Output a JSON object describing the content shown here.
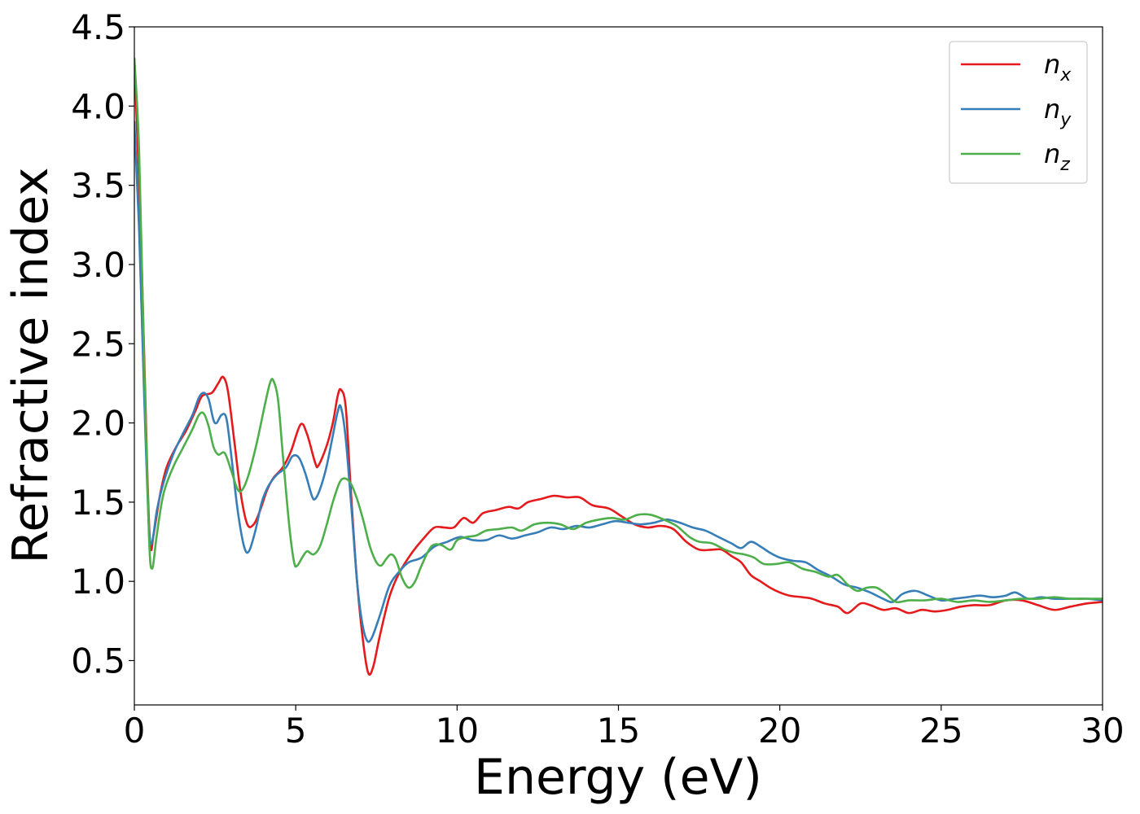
{
  "chart_data": {
    "type": "line",
    "title": "",
    "xlabel": "Energy (eV)",
    "ylabel": "Refractive index",
    "xlim": [
      0,
      30
    ],
    "ylim": [
      0.22,
      4.5
    ],
    "xticks": [
      "0",
      "5",
      "10",
      "15",
      "20",
      "25",
      "30"
    ],
    "yticks": [
      "0.5",
      "1.0",
      "1.5",
      "2.0",
      "2.5",
      "3.0",
      "3.5",
      "4.0",
      "4.5"
    ],
    "grid": false,
    "legend_position": "top-right",
    "series": [
      {
        "name": "n_x",
        "label_base": "n",
        "label_sub": "x",
        "color": "#e41a1c",
        "points": [
          [
            0,
            4.3
          ],
          [
            0.2,
            3.2
          ],
          [
            0.4,
            1.7
          ],
          [
            0.5,
            1.22
          ],
          [
            0.6,
            1.3
          ],
          [
            0.8,
            1.55
          ],
          [
            1.0,
            1.72
          ],
          [
            1.3,
            1.85
          ],
          [
            1.6,
            1.95
          ],
          [
            1.9,
            2.08
          ],
          [
            2.1,
            2.17
          ],
          [
            2.4,
            2.19
          ],
          [
            2.6,
            2.25
          ],
          [
            2.75,
            2.29
          ],
          [
            2.9,
            2.2
          ],
          [
            3.1,
            1.88
          ],
          [
            3.3,
            1.55
          ],
          [
            3.5,
            1.36
          ],
          [
            3.7,
            1.36
          ],
          [
            3.9,
            1.45
          ],
          [
            4.1,
            1.57
          ],
          [
            4.3,
            1.65
          ],
          [
            4.6,
            1.72
          ],
          [
            4.85,
            1.82
          ],
          [
            5.15,
            1.99
          ],
          [
            5.35,
            1.93
          ],
          [
            5.6,
            1.75
          ],
          [
            5.7,
            1.73
          ],
          [
            5.95,
            1.85
          ],
          [
            6.15,
            2.0
          ],
          [
            6.3,
            2.17
          ],
          [
            6.4,
            2.21
          ],
          [
            6.55,
            2.1
          ],
          [
            6.7,
            1.6
          ],
          [
            6.9,
            1.0
          ],
          [
            7.1,
            0.6
          ],
          [
            7.25,
            0.42
          ],
          [
            7.4,
            0.46
          ],
          [
            7.6,
            0.65
          ],
          [
            7.9,
            0.9
          ],
          [
            8.2,
            1.05
          ],
          [
            8.6,
            1.18
          ],
          [
            9.0,
            1.28
          ],
          [
            9.3,
            1.34
          ],
          [
            9.6,
            1.34
          ],
          [
            9.9,
            1.34
          ],
          [
            10.2,
            1.4
          ],
          [
            10.5,
            1.37
          ],
          [
            10.8,
            1.43
          ],
          [
            11.2,
            1.45
          ],
          [
            11.6,
            1.47
          ],
          [
            11.9,
            1.46
          ],
          [
            12.2,
            1.5
          ],
          [
            12.6,
            1.52
          ],
          [
            13.0,
            1.54
          ],
          [
            13.4,
            1.53
          ],
          [
            13.8,
            1.53
          ],
          [
            14.2,
            1.48
          ],
          [
            14.7,
            1.46
          ],
          [
            15.1,
            1.41
          ],
          [
            15.5,
            1.36
          ],
          [
            15.9,
            1.34
          ],
          [
            16.3,
            1.35
          ],
          [
            16.7,
            1.33
          ],
          [
            17.1,
            1.25
          ],
          [
            17.5,
            1.2
          ],
          [
            17.9,
            1.2
          ],
          [
            18.2,
            1.2
          ],
          [
            18.5,
            1.16
          ],
          [
            18.8,
            1.12
          ],
          [
            19.1,
            1.04
          ],
          [
            19.4,
            1.0
          ],
          [
            19.7,
            0.96
          ],
          [
            20.0,
            0.93
          ],
          [
            20.3,
            0.91
          ],
          [
            20.7,
            0.9
          ],
          [
            21.0,
            0.89
          ],
          [
            21.4,
            0.86
          ],
          [
            21.8,
            0.84
          ],
          [
            22.1,
            0.8
          ],
          [
            22.5,
            0.86
          ],
          [
            22.8,
            0.85
          ],
          [
            23.2,
            0.82
          ],
          [
            23.6,
            0.83
          ],
          [
            24.0,
            0.8
          ],
          [
            24.4,
            0.82
          ],
          [
            24.8,
            0.81
          ],
          [
            25.2,
            0.82
          ],
          [
            25.6,
            0.84
          ],
          [
            26.0,
            0.85
          ],
          [
            26.5,
            0.85
          ],
          [
            27.0,
            0.88
          ],
          [
            27.5,
            0.88
          ],
          [
            28.0,
            0.85
          ],
          [
            28.5,
            0.82
          ],
          [
            29.0,
            0.84
          ],
          [
            29.5,
            0.86
          ],
          [
            30.0,
            0.87
          ]
        ]
      },
      {
        "name": "n_y",
        "label_base": "n",
        "label_sub": "y",
        "color": "#377eb8",
        "points": [
          [
            0,
            3.9
          ],
          [
            0.15,
            3.2
          ],
          [
            0.3,
            2.2
          ],
          [
            0.45,
            1.35
          ],
          [
            0.55,
            1.25
          ],
          [
            0.7,
            1.45
          ],
          [
            0.9,
            1.62
          ],
          [
            1.2,
            1.8
          ],
          [
            1.5,
            1.93
          ],
          [
            1.8,
            2.05
          ],
          [
            2.0,
            2.16
          ],
          [
            2.15,
            2.19
          ],
          [
            2.3,
            2.15
          ],
          [
            2.45,
            2.02
          ],
          [
            2.55,
            2.0
          ],
          [
            2.7,
            2.05
          ],
          [
            2.85,
            2.03
          ],
          [
            3.0,
            1.8
          ],
          [
            3.2,
            1.45
          ],
          [
            3.4,
            1.22
          ],
          [
            3.55,
            1.19
          ],
          [
            3.75,
            1.32
          ],
          [
            3.95,
            1.5
          ],
          [
            4.15,
            1.6
          ],
          [
            4.4,
            1.67
          ],
          [
            4.7,
            1.72
          ],
          [
            4.9,
            1.79
          ],
          [
            5.1,
            1.78
          ],
          [
            5.3,
            1.68
          ],
          [
            5.5,
            1.54
          ],
          [
            5.6,
            1.52
          ],
          [
            5.75,
            1.58
          ],
          [
            5.95,
            1.72
          ],
          [
            6.15,
            1.92
          ],
          [
            6.3,
            2.07
          ],
          [
            6.4,
            2.1
          ],
          [
            6.55,
            1.9
          ],
          [
            6.75,
            1.4
          ],
          [
            6.9,
            1.0
          ],
          [
            7.05,
            0.75
          ],
          [
            7.2,
            0.63
          ],
          [
            7.35,
            0.64
          ],
          [
            7.6,
            0.78
          ],
          [
            7.9,
            0.97
          ],
          [
            8.2,
            1.06
          ],
          [
            8.5,
            1.12
          ],
          [
            8.9,
            1.15
          ],
          [
            9.3,
            1.22
          ],
          [
            9.7,
            1.25
          ],
          [
            10.1,
            1.28
          ],
          [
            10.5,
            1.26
          ],
          [
            10.9,
            1.26
          ],
          [
            11.3,
            1.29
          ],
          [
            11.7,
            1.27
          ],
          [
            12.1,
            1.29
          ],
          [
            12.5,
            1.31
          ],
          [
            12.9,
            1.34
          ],
          [
            13.3,
            1.33
          ],
          [
            13.7,
            1.35
          ],
          [
            14.1,
            1.34
          ],
          [
            14.5,
            1.36
          ],
          [
            14.9,
            1.38
          ],
          [
            15.3,
            1.37
          ],
          [
            15.7,
            1.36
          ],
          [
            16.1,
            1.37
          ],
          [
            16.5,
            1.39
          ],
          [
            16.9,
            1.37
          ],
          [
            17.3,
            1.34
          ],
          [
            17.7,
            1.32
          ],
          [
            18.1,
            1.28
          ],
          [
            18.5,
            1.24
          ],
          [
            18.8,
            1.21
          ],
          [
            19.1,
            1.25
          ],
          [
            19.4,
            1.22
          ],
          [
            19.7,
            1.18
          ],
          [
            20.0,
            1.15
          ],
          [
            20.4,
            1.13
          ],
          [
            20.8,
            1.12
          ],
          [
            21.2,
            1.07
          ],
          [
            21.6,
            1.03
          ],
          [
            22.0,
            0.98
          ],
          [
            22.4,
            0.96
          ],
          [
            22.8,
            0.93
          ],
          [
            23.2,
            0.89
          ],
          [
            23.5,
            0.87
          ],
          [
            23.8,
            0.92
          ],
          [
            24.2,
            0.94
          ],
          [
            24.6,
            0.91
          ],
          [
            25.0,
            0.88
          ],
          [
            25.4,
            0.89
          ],
          [
            25.8,
            0.9
          ],
          [
            26.2,
            0.91
          ],
          [
            26.6,
            0.9
          ],
          [
            27.0,
            0.91
          ],
          [
            27.3,
            0.93
          ],
          [
            27.7,
            0.89
          ],
          [
            28.1,
            0.9
          ],
          [
            28.5,
            0.89
          ],
          [
            29.0,
            0.89
          ],
          [
            29.5,
            0.89
          ],
          [
            30.0,
            0.88
          ]
        ]
      },
      {
        "name": "n_z",
        "label_base": "n",
        "label_sub": "z",
        "color": "#4daf4a",
        "points": [
          [
            0,
            4.3
          ],
          [
            0.15,
            3.7
          ],
          [
            0.3,
            2.4
          ],
          [
            0.45,
            1.3
          ],
          [
            0.55,
            1.08
          ],
          [
            0.7,
            1.3
          ],
          [
            0.9,
            1.55
          ],
          [
            1.2,
            1.72
          ],
          [
            1.5,
            1.84
          ],
          [
            1.8,
            1.96
          ],
          [
            2.0,
            2.05
          ],
          [
            2.15,
            2.06
          ],
          [
            2.3,
            1.98
          ],
          [
            2.45,
            1.85
          ],
          [
            2.6,
            1.8
          ],
          [
            2.8,
            1.81
          ],
          [
            3.0,
            1.7
          ],
          [
            3.2,
            1.58
          ],
          [
            3.35,
            1.58
          ],
          [
            3.55,
            1.68
          ],
          [
            3.8,
            1.88
          ],
          [
            4.05,
            2.12
          ],
          [
            4.2,
            2.25
          ],
          [
            4.3,
            2.27
          ],
          [
            4.45,
            2.15
          ],
          [
            4.6,
            1.8
          ],
          [
            4.8,
            1.35
          ],
          [
            4.95,
            1.12
          ],
          [
            5.05,
            1.1
          ],
          [
            5.2,
            1.15
          ],
          [
            5.35,
            1.19
          ],
          [
            5.55,
            1.17
          ],
          [
            5.75,
            1.22
          ],
          [
            5.95,
            1.35
          ],
          [
            6.15,
            1.5
          ],
          [
            6.35,
            1.62
          ],
          [
            6.5,
            1.65
          ],
          [
            6.7,
            1.62
          ],
          [
            6.9,
            1.52
          ],
          [
            7.1,
            1.38
          ],
          [
            7.3,
            1.22
          ],
          [
            7.5,
            1.12
          ],
          [
            7.65,
            1.1
          ],
          [
            7.8,
            1.14
          ],
          [
            7.95,
            1.17
          ],
          [
            8.1,
            1.14
          ],
          [
            8.3,
            1.02
          ],
          [
            8.5,
            0.96
          ],
          [
            8.7,
            1.0
          ],
          [
            8.9,
            1.1
          ],
          [
            9.2,
            1.22
          ],
          [
            9.5,
            1.23
          ],
          [
            9.8,
            1.2
          ],
          [
            10.0,
            1.26
          ],
          [
            10.3,
            1.28
          ],
          [
            10.6,
            1.29
          ],
          [
            10.9,
            1.32
          ],
          [
            11.3,
            1.33
          ],
          [
            11.7,
            1.34
          ],
          [
            12.0,
            1.32
          ],
          [
            12.4,
            1.36
          ],
          [
            12.8,
            1.37
          ],
          [
            13.2,
            1.36
          ],
          [
            13.6,
            1.33
          ],
          [
            14.0,
            1.37
          ],
          [
            14.4,
            1.39
          ],
          [
            14.8,
            1.4
          ],
          [
            15.2,
            1.39
          ],
          [
            15.6,
            1.42
          ],
          [
            16.0,
            1.42
          ],
          [
            16.4,
            1.39
          ],
          [
            16.8,
            1.35
          ],
          [
            17.2,
            1.28
          ],
          [
            17.5,
            1.25
          ],
          [
            17.9,
            1.24
          ],
          [
            18.3,
            1.2
          ],
          [
            18.6,
            1.18
          ],
          [
            18.9,
            1.17
          ],
          [
            19.2,
            1.15
          ],
          [
            19.5,
            1.11
          ],
          [
            19.9,
            1.11
          ],
          [
            20.3,
            1.12
          ],
          [
            20.7,
            1.08
          ],
          [
            21.1,
            1.06
          ],
          [
            21.5,
            1.03
          ],
          [
            21.8,
            1.04
          ],
          [
            22.1,
            0.98
          ],
          [
            22.4,
            0.94
          ],
          [
            22.7,
            0.96
          ],
          [
            23.0,
            0.96
          ],
          [
            23.3,
            0.92
          ],
          [
            23.6,
            0.87
          ],
          [
            24.0,
            0.88
          ],
          [
            24.5,
            0.88
          ],
          [
            25.0,
            0.89
          ],
          [
            25.5,
            0.87
          ],
          [
            26.0,
            0.88
          ],
          [
            26.5,
            0.87
          ],
          [
            27.0,
            0.88
          ],
          [
            27.5,
            0.89
          ],
          [
            28.0,
            0.89
          ],
          [
            28.5,
            0.9
          ],
          [
            29.0,
            0.89
          ],
          [
            29.5,
            0.89
          ],
          [
            30.0,
            0.89
          ]
        ]
      }
    ]
  }
}
